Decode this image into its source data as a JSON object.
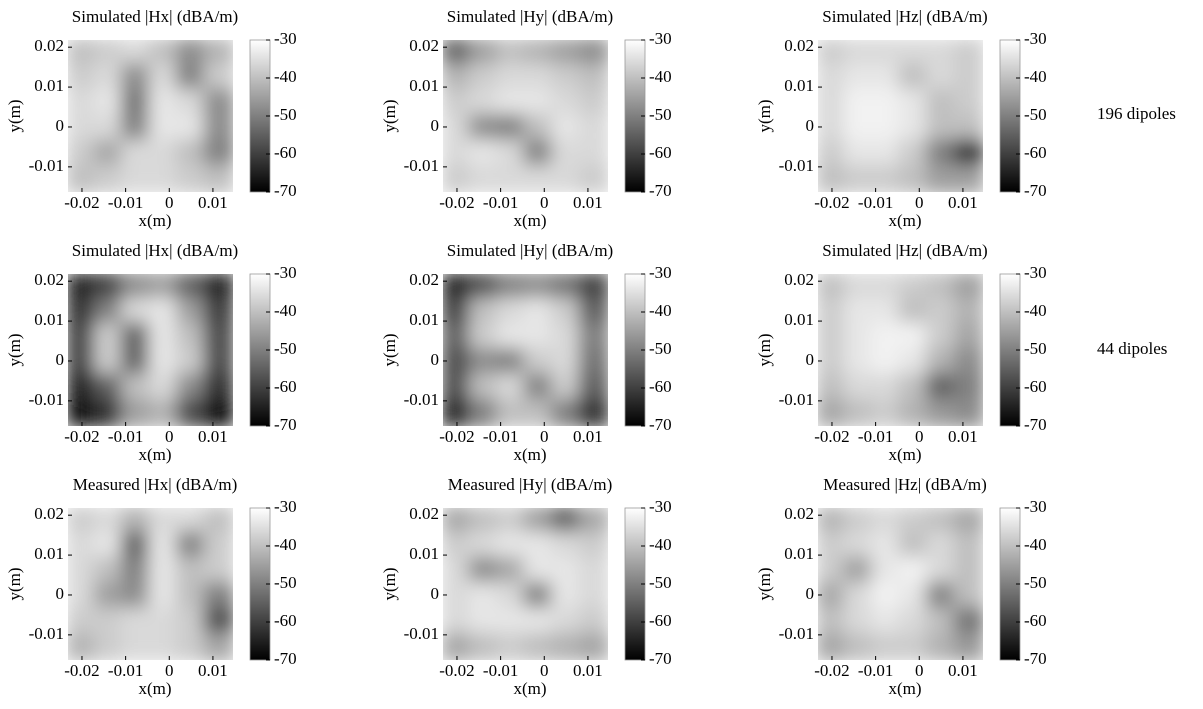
{
  "chart_data": [
    {
      "type": "heatmap",
      "title": "Simulated |Hx| (dBA/m)",
      "xlabel": "x(m)",
      "ylabel": "y(m)",
      "xlim": [
        -0.0232,
        0.0146
      ],
      "ylim": [
        -0.0163,
        0.0218
      ],
      "xticks": [
        -0.02,
        -0.01,
        0,
        0.01
      ],
      "yticks": [
        0.02,
        0.01,
        0,
        -0.01
      ],
      "clim": [
        -70,
        -30
      ],
      "cticks": [
        -30,
        -40,
        -50,
        -60,
        -70
      ],
      "colormap": "gray",
      "z": [
        [
          -40,
          -38,
          -36,
          -40,
          -48,
          -42
        ],
        [
          -38,
          -36,
          -48,
          -36,
          -50,
          -38
        ],
        [
          -36,
          -34,
          -52,
          -34,
          -36,
          -48
        ],
        [
          -36,
          -36,
          -50,
          -34,
          -34,
          -48
        ],
        [
          -38,
          -44,
          -36,
          -36,
          -40,
          -50
        ],
        [
          -40,
          -38,
          -36,
          -36,
          -38,
          -40
        ]
      ]
    },
    {
      "type": "heatmap",
      "title": "Simulated |Hy| (dBA/m)",
      "xlabel": "x(m)",
      "ylabel": "y(m)",
      "xlim": [
        -0.0232,
        0.0146
      ],
      "ylim": [
        -0.0163,
        0.0218
      ],
      "xticks": [
        -0.02,
        -0.01,
        0,
        0.01
      ],
      "yticks": [
        0.02,
        0.01,
        0,
        -0.01
      ],
      "clim": [
        -70,
        -30
      ],
      "cticks": [
        -30,
        -40,
        -50,
        -60,
        -70
      ],
      "colormap": "gray",
      "z": [
        [
          -55,
          -45,
          -40,
          -42,
          -45,
          -48
        ],
        [
          -42,
          -38,
          -36,
          -36,
          -38,
          -40
        ],
        [
          -38,
          -36,
          -34,
          -34,
          -36,
          -38
        ],
        [
          -36,
          -48,
          -50,
          -40,
          -34,
          -36
        ],
        [
          -36,
          -34,
          -36,
          -50,
          -36,
          -36
        ],
        [
          -38,
          -36,
          -36,
          -36,
          -36,
          -38
        ]
      ]
    },
    {
      "type": "heatmap",
      "title": "Simulated |Hz| (dBA/m)",
      "xlabel": "x(m)",
      "ylabel": "y(m)",
      "xlim": [
        -0.0232,
        0.0146
      ],
      "ylim": [
        -0.0163,
        0.0218
      ],
      "xticks": [
        -0.02,
        -0.01,
        0,
        0.01
      ],
      "yticks": [
        0.02,
        0.01,
        0,
        -0.01
      ],
      "clim": [
        -70,
        -30
      ],
      "cticks": [
        -30,
        -40,
        -50,
        -60,
        -70
      ],
      "colormap": "gray",
      "z": [
        [
          -38,
          -36,
          -36,
          -36,
          -36,
          -38
        ],
        [
          -36,
          -34,
          -34,
          -40,
          -36,
          -38
        ],
        [
          -36,
          -32,
          -32,
          -34,
          -40,
          -38
        ],
        [
          -36,
          -32,
          -32,
          -34,
          -40,
          -40
        ],
        [
          -38,
          -34,
          -34,
          -38,
          -50,
          -62
        ],
        [
          -40,
          -38,
          -38,
          -40,
          -45,
          -45
        ]
      ]
    },
    {
      "type": "heatmap",
      "title": "Simulated |Hx| (dBA/m)",
      "xlabel": "x(m)",
      "ylabel": "y(m)",
      "xlim": [
        -0.0232,
        0.0146
      ],
      "ylim": [
        -0.0163,
        0.0218
      ],
      "xticks": [
        -0.02,
        -0.01,
        0,
        0.01
      ],
      "yticks": [
        0.02,
        0.01,
        0,
        -0.01
      ],
      "clim": [
        -70,
        -30
      ],
      "cticks": [
        -30,
        -40,
        -50,
        -60,
        -70
      ],
      "colormap": "gray",
      "z": [
        [
          -65,
          -60,
          -48,
          -45,
          -55,
          -65
        ],
        [
          -62,
          -50,
          -36,
          -34,
          -45,
          -60
        ],
        [
          -60,
          -38,
          -55,
          -34,
          -40,
          -58
        ],
        [
          -60,
          -38,
          -55,
          -34,
          -38,
          -58
        ],
        [
          -65,
          -55,
          -40,
          -36,
          -48,
          -62
        ],
        [
          -68,
          -62,
          -45,
          -42,
          -58,
          -68
        ]
      ]
    },
    {
      "type": "heatmap",
      "title": "Simulated |Hy| (dBA/m)",
      "xlabel": "x(m)",
      "ylabel": "y(m)",
      "xlim": [
        -0.0232,
        0.0146
      ],
      "ylim": [
        -0.0163,
        0.0218
      ],
      "xticks": [
        -0.02,
        -0.01,
        0,
        0.01
      ],
      "yticks": [
        0.02,
        0.01,
        0,
        -0.01
      ],
      "clim": [
        -70,
        -30
      ],
      "cticks": [
        -30,
        -40,
        -50,
        -60,
        -70
      ],
      "colormap": "gray",
      "z": [
        [
          -65,
          -58,
          -50,
          -48,
          -52,
          -60
        ],
        [
          -60,
          -40,
          -36,
          -34,
          -38,
          -55
        ],
        [
          -55,
          -38,
          -34,
          -34,
          -36,
          -50
        ],
        [
          -58,
          -48,
          -50,
          -38,
          -36,
          -52
        ],
        [
          -58,
          -40,
          -36,
          -50,
          -38,
          -55
        ],
        [
          -65,
          -50,
          -40,
          -40,
          -50,
          -62
        ]
      ]
    },
    {
      "type": "heatmap",
      "title": "Simulated |Hz| (dBA/m)",
      "xlabel": "x(m)",
      "ylabel": "y(m)",
      "xlim": [
        -0.0232,
        0.0146
      ],
      "ylim": [
        -0.0163,
        0.0218
      ],
      "xticks": [
        -0.02,
        -0.01,
        0,
        0.01
      ],
      "yticks": [
        0.02,
        0.01,
        0,
        -0.01
      ],
      "clim": [
        -70,
        -30
      ],
      "cticks": [
        -30,
        -40,
        -50,
        -60,
        -70
      ],
      "colormap": "gray",
      "z": [
        [
          -40,
          -36,
          -36,
          -38,
          -40,
          -45
        ],
        [
          -38,
          -34,
          -34,
          -40,
          -38,
          -42
        ],
        [
          -38,
          -34,
          -32,
          -32,
          -38,
          -44
        ],
        [
          -38,
          -34,
          -32,
          -34,
          -42,
          -48
        ],
        [
          -40,
          -36,
          -36,
          -40,
          -55,
          -50
        ],
        [
          -44,
          -40,
          -38,
          -42,
          -46,
          -48
        ]
      ]
    },
    {
      "type": "heatmap",
      "title": "Measured |Hx| (dBA/m)",
      "xlabel": "x(m)",
      "ylabel": "y(m)",
      "xlim": [
        -0.0232,
        0.0146
      ],
      "ylim": [
        -0.0163,
        0.0218
      ],
      "xticks": [
        -0.02,
        -0.01,
        0,
        0.01
      ],
      "yticks": [
        0.02,
        0.01,
        0,
        -0.01
      ],
      "clim": [
        -70,
        -30
      ],
      "cticks": [
        -30,
        -40,
        -50,
        -60,
        -70
      ],
      "colormap": "gray",
      "z": [
        [
          -38,
          -36,
          -42,
          -36,
          -36,
          -40
        ],
        [
          -36,
          -34,
          -55,
          -34,
          -50,
          -38
        ],
        [
          -36,
          -40,
          -50,
          -34,
          -40,
          -38
        ],
        [
          -36,
          -45,
          -48,
          -34,
          -40,
          -50
        ],
        [
          -38,
          -38,
          -36,
          -36,
          -38,
          -58
        ],
        [
          -42,
          -38,
          -36,
          -36,
          -38,
          -44
        ]
      ]
    },
    {
      "type": "heatmap",
      "title": "Measured |Hy| (dBA/m)",
      "xlabel": "x(m)",
      "ylabel": "y(m)",
      "xlim": [
        -0.0232,
        0.0146
      ],
      "ylim": [
        -0.0163,
        0.0218
      ],
      "xticks": [
        -0.02,
        -0.01,
        0,
        0.01
      ],
      "yticks": [
        0.02,
        0.01,
        0,
        -0.01
      ],
      "clim": [
        -70,
        -30
      ],
      "cticks": [
        -30,
        -40,
        -50,
        -60,
        -70
      ],
      "colormap": "gray",
      "z": [
        [
          -44,
          -40,
          -38,
          -45,
          -55,
          -44
        ],
        [
          -38,
          -36,
          -34,
          -34,
          -36,
          -38
        ],
        [
          -36,
          -48,
          -44,
          -34,
          -34,
          -36
        ],
        [
          -36,
          -34,
          -36,
          -50,
          -34,
          -36
        ],
        [
          -36,
          -34,
          -34,
          -34,
          -36,
          -38
        ],
        [
          -44,
          -40,
          -38,
          -40,
          -42,
          -44
        ]
      ]
    },
    {
      "type": "heatmap",
      "title": "Measured |Hz| (dBA/m)",
      "xlabel": "x(m)",
      "ylabel": "y(m)",
      "xlim": [
        -0.0232,
        0.0146
      ],
      "ylim": [
        -0.0163,
        0.0218
      ],
      "xticks": [
        -0.02,
        -0.01,
        0,
        0.01
      ],
      "yticks": [
        0.02,
        0.01,
        0,
        -0.01
      ],
      "clim": [
        -70,
        -30
      ],
      "cticks": [
        -30,
        -40,
        -50,
        -60,
        -70
      ],
      "colormap": "gray",
      "z": [
        [
          -42,
          -38,
          -36,
          -38,
          -40,
          -44
        ],
        [
          -38,
          -36,
          -34,
          -40,
          -36,
          -40
        ],
        [
          -38,
          -45,
          -34,
          -32,
          -36,
          -40
        ],
        [
          -44,
          -36,
          -32,
          -34,
          -50,
          -40
        ],
        [
          -40,
          -36,
          -34,
          -36,
          -40,
          -52
        ],
        [
          -44,
          -40,
          -38,
          -38,
          -42,
          -46
        ]
      ]
    }
  ],
  "row_labels": [
    "196 dipoles",
    "44 dipoles"
  ]
}
